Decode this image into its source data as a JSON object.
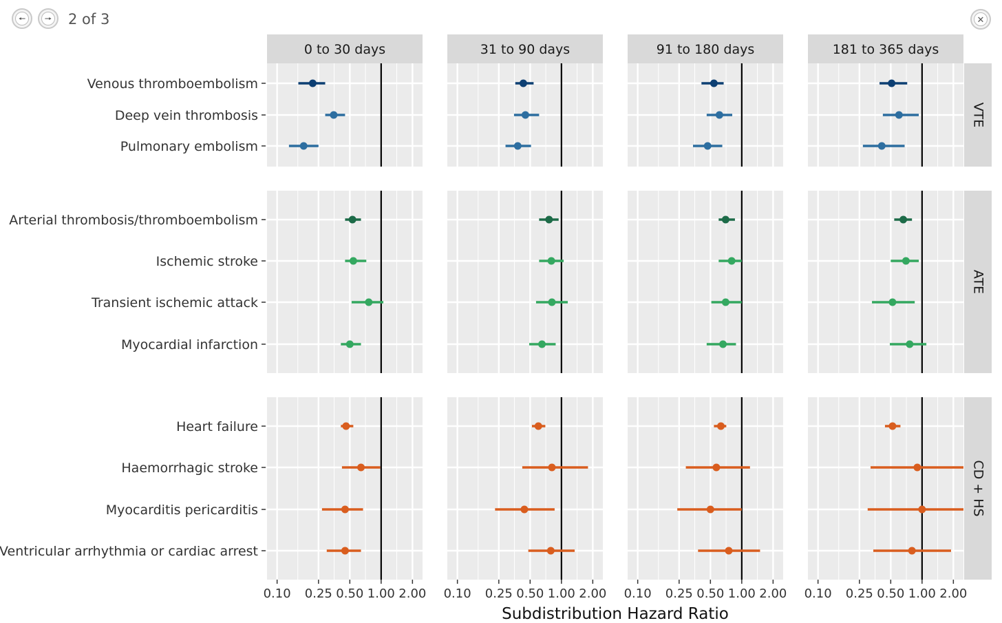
{
  "viewer": {
    "counter": "2 of 3",
    "prev_icon": "arrow-left-icon",
    "next_icon": "arrow-right-icon",
    "close_icon": "close-icon"
  },
  "chart_data": {
    "type": "forest",
    "xlabel": "Subdistribution Hazard Ratio",
    "x_scale": "log",
    "xlim": [
      0.08,
      2.5
    ],
    "x_ticks": [
      0.1,
      0.25,
      0.5,
      1.0,
      2.0
    ],
    "x_tick_labels": [
      "0.10",
      "0.25",
      "0.50",
      "1.00",
      "2.00"
    ],
    "reference_line": 1.0,
    "grid": true,
    "columns": [
      "0 to 30 days",
      "31 to 90 days",
      "91 to 180 days",
      "181 to 365 days"
    ],
    "groups": [
      {
        "name": "VTE",
        "outcomes": [
          {
            "label": "Venous thromboembolism",
            "color": "#0d3f73",
            "estimates": [
              [
                0.22,
                0.16,
                0.29
              ],
              [
                0.43,
                0.36,
                0.54
              ],
              [
                0.54,
                0.41,
                0.67
              ],
              [
                0.51,
                0.39,
                0.72
              ]
            ]
          },
          {
            "label": "Deep vein thrombosis",
            "color": "#2d6ea0",
            "estimates": [
              [
                0.35,
                0.29,
                0.45
              ],
              [
                0.45,
                0.35,
                0.61
              ],
              [
                0.61,
                0.46,
                0.81
              ],
              [
                0.6,
                0.42,
                0.93
              ]
            ]
          },
          {
            "label": "Pulmonary embolism",
            "color": "#2d6ea0",
            "estimates": [
              [
                0.18,
                0.13,
                0.25
              ],
              [
                0.38,
                0.29,
                0.51
              ],
              [
                0.47,
                0.34,
                0.65
              ],
              [
                0.41,
                0.27,
                0.68
              ]
            ]
          }
        ]
      },
      {
        "name": "ATE",
        "outcomes": [
          {
            "label": "Arterial thrombosis/thromboembolism",
            "color": "#1d6b48",
            "estimates": [
              [
                0.53,
                0.45,
                0.64
              ],
              [
                0.76,
                0.61,
                0.94
              ],
              [
                0.7,
                0.6,
                0.86
              ],
              [
                0.66,
                0.54,
                0.8
              ]
            ]
          },
          {
            "label": "Ischemic stroke",
            "color": "#34a860",
            "estimates": [
              [
                0.54,
                0.45,
                0.72
              ],
              [
                0.8,
                0.61,
                1.05
              ],
              [
                0.8,
                0.6,
                1.0
              ],
              [
                0.7,
                0.5,
                0.93
              ]
            ]
          },
          {
            "label": "Transient ischemic attack",
            "color": "#34a860",
            "estimates": [
              [
                0.76,
                0.52,
                1.05
              ],
              [
                0.81,
                0.57,
                1.15
              ],
              [
                0.7,
                0.51,
                1.0
              ],
              [
                0.52,
                0.33,
                0.85
              ]
            ]
          },
          {
            "label": "Myocardial infarction",
            "color": "#34a860",
            "estimates": [
              [
                0.5,
                0.41,
                0.64
              ],
              [
                0.65,
                0.49,
                0.88
              ],
              [
                0.66,
                0.46,
                0.88
              ],
              [
                0.76,
                0.49,
                1.1
              ]
            ]
          }
        ]
      },
      {
        "name": "CD + HS",
        "outcomes": [
          {
            "label": "Heart failure",
            "color": "#d95d1e",
            "estimates": [
              [
                0.46,
                0.41,
                0.54
              ],
              [
                0.6,
                0.52,
                0.7
              ],
              [
                0.63,
                0.54,
                0.71
              ],
              [
                0.52,
                0.44,
                0.62
              ]
            ]
          },
          {
            "label": "Haemorrhagic stroke",
            "color": "#d95d1e",
            "estimates": [
              [
                0.64,
                0.42,
                0.98
              ],
              [
                0.81,
                0.42,
                1.8
              ],
              [
                0.57,
                0.29,
                1.2
              ],
              [
                0.9,
                0.32,
                2.5
              ]
            ]
          },
          {
            "label": "Myocarditis pericarditis",
            "color": "#d95d1e",
            "estimates": [
              [
                0.45,
                0.27,
                0.67
              ],
              [
                0.44,
                0.23,
                0.86
              ],
              [
                0.5,
                0.24,
                1.0
              ],
              [
                1.0,
                0.3,
                2.5
              ]
            ]
          },
          {
            "label": "Ventricular arrhythmia or cardiac arrest",
            "color": "#d95d1e",
            "estimates": [
              [
                0.45,
                0.3,
                0.64
              ],
              [
                0.79,
                0.48,
                1.34
              ],
              [
                0.75,
                0.38,
                1.5
              ],
              [
                0.8,
                0.34,
                1.9
              ]
            ]
          }
        ]
      }
    ]
  }
}
